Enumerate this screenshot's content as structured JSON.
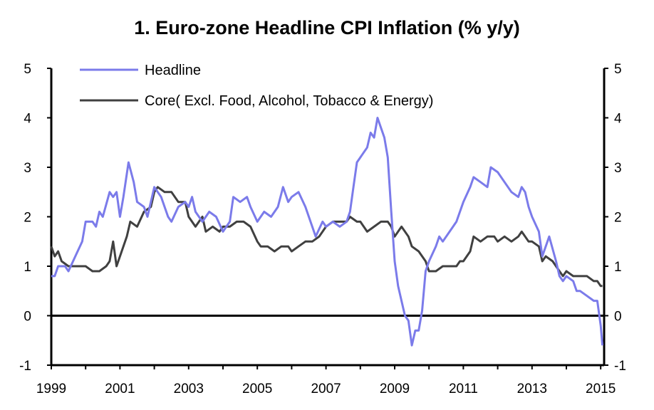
{
  "chart_data": {
    "type": "line",
    "title": "1. Euro-zone Headline CPI Inflation (% y/y)",
    "xlabel": "",
    "ylabel": "",
    "xlim": [
      1999,
      2015.1
    ],
    "ylim": [
      -1,
      5
    ],
    "x_ticks": [
      "1999",
      "2001",
      "2003",
      "2005",
      "2007",
      "2009",
      "2011",
      "2013",
      "2015"
    ],
    "y_ticks": [
      "-1",
      "0",
      "1",
      "2",
      "3",
      "4",
      "5"
    ],
    "y_ticks_right": [
      "-1",
      "0",
      "1",
      "2",
      "3",
      "4",
      "5"
    ],
    "zero_line": 0,
    "grid": false,
    "legend_position": "top-left",
    "series": [
      {
        "name": "Headline",
        "color": "#7b7bea",
        "points": [
          [
            1999.0,
            0.8
          ],
          [
            1999.1,
            0.8
          ],
          [
            1999.2,
            1.0
          ],
          [
            1999.3,
            1.0
          ],
          [
            1999.4,
            1.0
          ],
          [
            1999.5,
            0.9
          ],
          [
            1999.7,
            1.2
          ],
          [
            1999.9,
            1.5
          ],
          [
            2000.0,
            1.9
          ],
          [
            2000.2,
            1.9
          ],
          [
            2000.3,
            1.8
          ],
          [
            2000.4,
            2.1
          ],
          [
            2000.5,
            2.0
          ],
          [
            2000.7,
            2.5
          ],
          [
            2000.8,
            2.4
          ],
          [
            2000.9,
            2.5
          ],
          [
            2001.0,
            2.0
          ],
          [
            2001.1,
            2.4
          ],
          [
            2001.25,
            3.1
          ],
          [
            2001.4,
            2.7
          ],
          [
            2001.5,
            2.3
          ],
          [
            2001.7,
            2.2
          ],
          [
            2001.8,
            2.0
          ],
          [
            2002.0,
            2.6
          ],
          [
            2002.1,
            2.5
          ],
          [
            2002.2,
            2.4
          ],
          [
            2002.4,
            2.0
          ],
          [
            2002.5,
            1.9
          ],
          [
            2002.7,
            2.2
          ],
          [
            2002.9,
            2.3
          ],
          [
            2003.0,
            2.2
          ],
          [
            2003.1,
            2.4
          ],
          [
            2003.2,
            2.1
          ],
          [
            2003.4,
            1.9
          ],
          [
            2003.6,
            2.1
          ],
          [
            2003.8,
            2.0
          ],
          [
            2004.0,
            1.7
          ],
          [
            2004.2,
            1.9
          ],
          [
            2004.3,
            2.4
          ],
          [
            2004.5,
            2.3
          ],
          [
            2004.7,
            2.4
          ],
          [
            2004.8,
            2.2
          ],
          [
            2005.0,
            1.9
          ],
          [
            2005.2,
            2.1
          ],
          [
            2005.4,
            2.0
          ],
          [
            2005.6,
            2.2
          ],
          [
            2005.75,
            2.6
          ],
          [
            2005.9,
            2.3
          ],
          [
            2006.0,
            2.4
          ],
          [
            2006.2,
            2.5
          ],
          [
            2006.4,
            2.2
          ],
          [
            2006.6,
            1.8
          ],
          [
            2006.7,
            1.6
          ],
          [
            2006.9,
            1.9
          ],
          [
            2007.0,
            1.8
          ],
          [
            2007.2,
            1.9
          ],
          [
            2007.4,
            1.8
          ],
          [
            2007.6,
            1.9
          ],
          [
            2007.7,
            2.1
          ],
          [
            2007.8,
            2.6
          ],
          [
            2007.9,
            3.1
          ],
          [
            2008.0,
            3.2
          ],
          [
            2008.2,
            3.4
          ],
          [
            2008.3,
            3.7
          ],
          [
            2008.4,
            3.6
          ],
          [
            2008.5,
            4.0
          ],
          [
            2008.6,
            3.8
          ],
          [
            2008.7,
            3.6
          ],
          [
            2008.8,
            3.2
          ],
          [
            2008.9,
            2.1
          ],
          [
            2009.0,
            1.1
          ],
          [
            2009.1,
            0.6
          ],
          [
            2009.3,
            0.0
          ],
          [
            2009.4,
            -0.1
          ],
          [
            2009.5,
            -0.6
          ],
          [
            2009.6,
            -0.3
          ],
          [
            2009.7,
            -0.3
          ],
          [
            2009.8,
            0.1
          ],
          [
            2009.9,
            0.9
          ],
          [
            2010.0,
            1.1
          ],
          [
            2010.2,
            1.4
          ],
          [
            2010.3,
            1.6
          ],
          [
            2010.4,
            1.5
          ],
          [
            2010.6,
            1.7
          ],
          [
            2010.8,
            1.9
          ],
          [
            2011.0,
            2.3
          ],
          [
            2011.2,
            2.6
          ],
          [
            2011.3,
            2.8
          ],
          [
            2011.5,
            2.7
          ],
          [
            2011.7,
            2.6
          ],
          [
            2011.8,
            3.0
          ],
          [
            2012.0,
            2.9
          ],
          [
            2012.2,
            2.7
          ],
          [
            2012.4,
            2.5
          ],
          [
            2012.6,
            2.4
          ],
          [
            2012.7,
            2.6
          ],
          [
            2012.8,
            2.5
          ],
          [
            2012.9,
            2.2
          ],
          [
            2013.0,
            2.0
          ],
          [
            2013.2,
            1.7
          ],
          [
            2013.3,
            1.2
          ],
          [
            2013.5,
            1.6
          ],
          [
            2013.7,
            1.1
          ],
          [
            2013.8,
            0.8
          ],
          [
            2013.9,
            0.7
          ],
          [
            2014.0,
            0.8
          ],
          [
            2014.2,
            0.7
          ],
          [
            2014.3,
            0.5
          ],
          [
            2014.4,
            0.5
          ],
          [
            2014.6,
            0.4
          ],
          [
            2014.8,
            0.3
          ],
          [
            2014.9,
            0.3
          ],
          [
            2015.0,
            -0.2
          ],
          [
            2015.05,
            -0.6
          ]
        ]
      },
      {
        "name": "Core( Excl. Food, Alcohol, Tobacco & Energy)",
        "color": "#404040",
        "points": [
          [
            1999.0,
            1.4
          ],
          [
            1999.1,
            1.2
          ],
          [
            1999.2,
            1.3
          ],
          [
            1999.3,
            1.1
          ],
          [
            1999.5,
            1.0
          ],
          [
            1999.7,
            1.0
          ],
          [
            1999.9,
            1.0
          ],
          [
            2000.0,
            1.0
          ],
          [
            2000.2,
            0.9
          ],
          [
            2000.4,
            0.9
          ],
          [
            2000.6,
            1.0
          ],
          [
            2000.7,
            1.1
          ],
          [
            2000.8,
            1.5
          ],
          [
            2000.9,
            1.0
          ],
          [
            2001.0,
            1.2
          ],
          [
            2001.2,
            1.6
          ],
          [
            2001.3,
            1.9
          ],
          [
            2001.5,
            1.8
          ],
          [
            2001.7,
            2.1
          ],
          [
            2001.9,
            2.2
          ],
          [
            2002.0,
            2.5
          ],
          [
            2002.1,
            2.6
          ],
          [
            2002.3,
            2.5
          ],
          [
            2002.5,
            2.5
          ],
          [
            2002.7,
            2.3
          ],
          [
            2002.9,
            2.3
          ],
          [
            2003.0,
            2.0
          ],
          [
            2003.2,
            1.8
          ],
          [
            2003.4,
            2.0
          ],
          [
            2003.5,
            1.7
          ],
          [
            2003.7,
            1.8
          ],
          [
            2003.9,
            1.7
          ],
          [
            2004.0,
            1.8
          ],
          [
            2004.2,
            1.8
          ],
          [
            2004.4,
            1.9
          ],
          [
            2004.6,
            1.9
          ],
          [
            2004.8,
            1.8
          ],
          [
            2005.0,
            1.5
          ],
          [
            2005.1,
            1.4
          ],
          [
            2005.3,
            1.4
          ],
          [
            2005.5,
            1.3
          ],
          [
            2005.7,
            1.4
          ],
          [
            2005.9,
            1.4
          ],
          [
            2006.0,
            1.3
          ],
          [
            2006.2,
            1.4
          ],
          [
            2006.4,
            1.5
          ],
          [
            2006.6,
            1.5
          ],
          [
            2006.8,
            1.6
          ],
          [
            2007.0,
            1.8
          ],
          [
            2007.2,
            1.9
          ],
          [
            2007.4,
            1.9
          ],
          [
            2007.6,
            1.9
          ],
          [
            2007.7,
            2.0
          ],
          [
            2007.9,
            1.9
          ],
          [
            2008.0,
            1.9
          ],
          [
            2008.2,
            1.7
          ],
          [
            2008.4,
            1.8
          ],
          [
            2008.6,
            1.9
          ],
          [
            2008.8,
            1.9
          ],
          [
            2008.9,
            1.8
          ],
          [
            2009.0,
            1.6
          ],
          [
            2009.2,
            1.8
          ],
          [
            2009.4,
            1.6
          ],
          [
            2009.5,
            1.4
          ],
          [
            2009.7,
            1.3
          ],
          [
            2009.9,
            1.1
          ],
          [
            2010.0,
            0.9
          ],
          [
            2010.2,
            0.9
          ],
          [
            2010.4,
            1.0
          ],
          [
            2010.6,
            1.0
          ],
          [
            2010.8,
            1.0
          ],
          [
            2010.9,
            1.1
          ],
          [
            2011.0,
            1.1
          ],
          [
            2011.2,
            1.3
          ],
          [
            2011.3,
            1.6
          ],
          [
            2011.5,
            1.5
          ],
          [
            2011.7,
            1.6
          ],
          [
            2011.9,
            1.6
          ],
          [
            2012.0,
            1.5
          ],
          [
            2012.2,
            1.6
          ],
          [
            2012.4,
            1.5
          ],
          [
            2012.6,
            1.6
          ],
          [
            2012.7,
            1.7
          ],
          [
            2012.9,
            1.5
          ],
          [
            2013.0,
            1.5
          ],
          [
            2013.2,
            1.4
          ],
          [
            2013.3,
            1.1
          ],
          [
            2013.4,
            1.2
          ],
          [
            2013.6,
            1.1
          ],
          [
            2013.8,
            0.9
          ],
          [
            2013.9,
            0.8
          ],
          [
            2014.0,
            0.9
          ],
          [
            2014.2,
            0.8
          ],
          [
            2014.4,
            0.8
          ],
          [
            2014.6,
            0.8
          ],
          [
            2014.8,
            0.7
          ],
          [
            2014.9,
            0.7
          ],
          [
            2015.0,
            0.6
          ],
          [
            2015.05,
            0.6
          ]
        ]
      }
    ]
  }
}
